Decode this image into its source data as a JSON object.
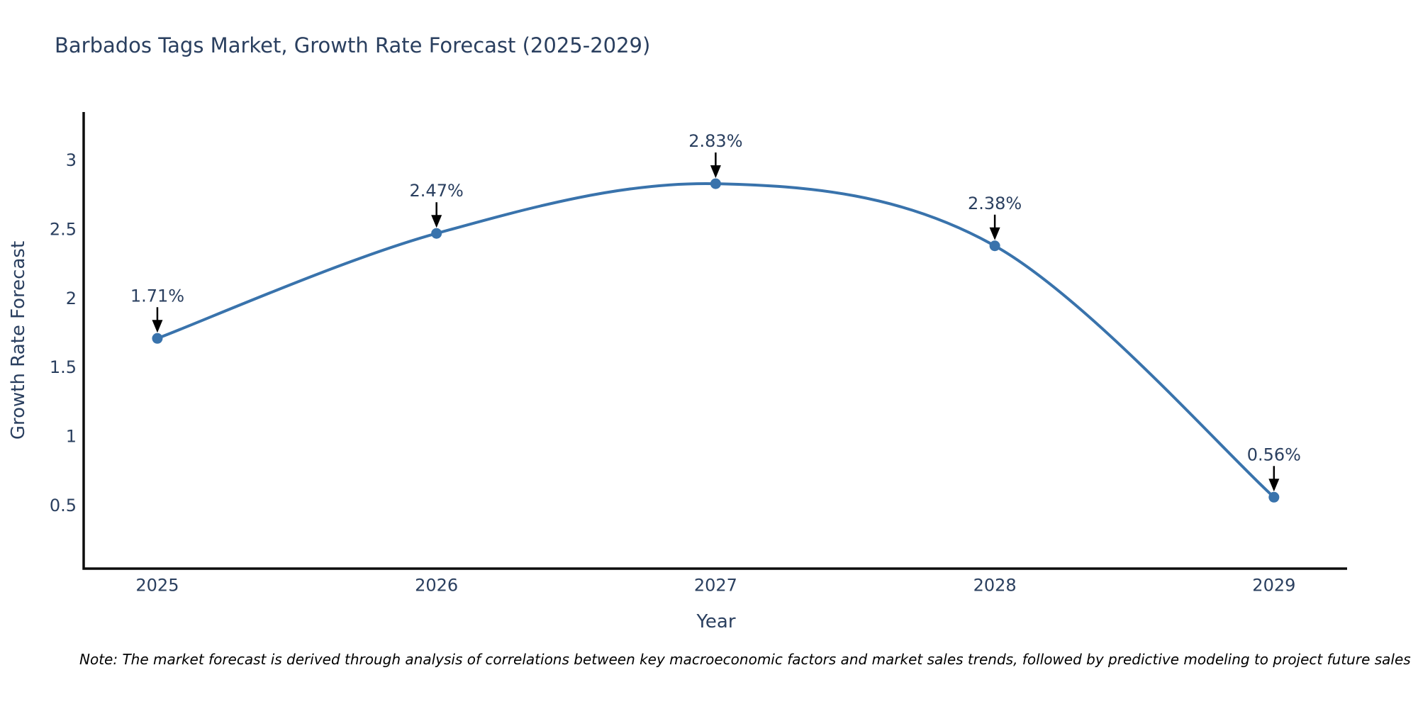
{
  "title": "Barbados Tags Market, Growth Rate Forecast (2025-2029)",
  "note": "Note: The market forecast is derived through analysis of correlations between key macroeconomic factors and market sales trends, followed by predictive modeling to project future sales",
  "chart_data": {
    "type": "line",
    "title": "Barbados Tags Market, Growth Rate Forecast (2025-2029)",
    "xlabel": "Year",
    "ylabel": "Growth Rate Forecast",
    "x": [
      2025,
      2026,
      2027,
      2028,
      2029
    ],
    "values": [
      1.71,
      2.47,
      2.83,
      2.38,
      0.56
    ],
    "point_labels": [
      "1.71%",
      "2.47%",
      "2.83%",
      "2.38%",
      "0.56%"
    ],
    "xticks": [
      "2025",
      "2026",
      "2027",
      "2028",
      "2029"
    ],
    "xtick_values": [
      2025,
      2026,
      2027,
      2028,
      2029
    ],
    "yticks": [
      "0.5",
      "1",
      "1.5",
      "2",
      "2.5",
      "3"
    ],
    "ytick_values": [
      0.5,
      1,
      1.5,
      2,
      2.5,
      3
    ],
    "xlim": [
      2024.736,
      2029.262
    ],
    "ylim": [
      0.043,
      3.349
    ],
    "line_shape": "spline",
    "grid": false,
    "legend": "none",
    "colors": {
      "line": "#3973ac",
      "marker": "#3973ac",
      "text": "#2a3f5f",
      "axis_line": "#0d0d0d",
      "annotation_arrow": "#000000",
      "background": "#ffffff"
    }
  }
}
